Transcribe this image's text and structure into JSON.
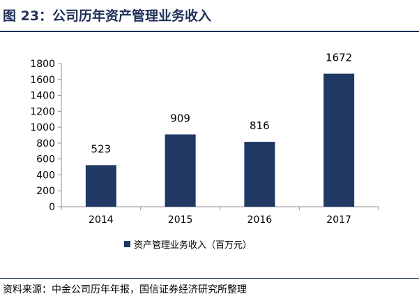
{
  "header": {
    "title": "图 23：公司历年资产管理业务收入"
  },
  "footer": {
    "source": "资料来源：中金公司历年年报，国信证券经济研究所整理"
  },
  "colors": {
    "bar": "#1f3864",
    "title": "#1f2f57",
    "axis": "#8c8c8c"
  },
  "chart_data": {
    "type": "bar",
    "title": "",
    "xlabel": "",
    "ylabel": "",
    "categories": [
      "2014",
      "2015",
      "2016",
      "2017"
    ],
    "series": [
      {
        "name": "资产管理业务收入（百万元）",
        "values": [
          523,
          909,
          816,
          1672
        ]
      }
    ],
    "data_labels": [
      "523",
      "909",
      "816",
      "1672"
    ],
    "ylim": [
      0,
      1800
    ],
    "yticks": [
      "0",
      "200",
      "400",
      "600",
      "800",
      "1000",
      "1200",
      "1400",
      "1600",
      "1800"
    ],
    "grid": false,
    "legend": "bottom"
  }
}
